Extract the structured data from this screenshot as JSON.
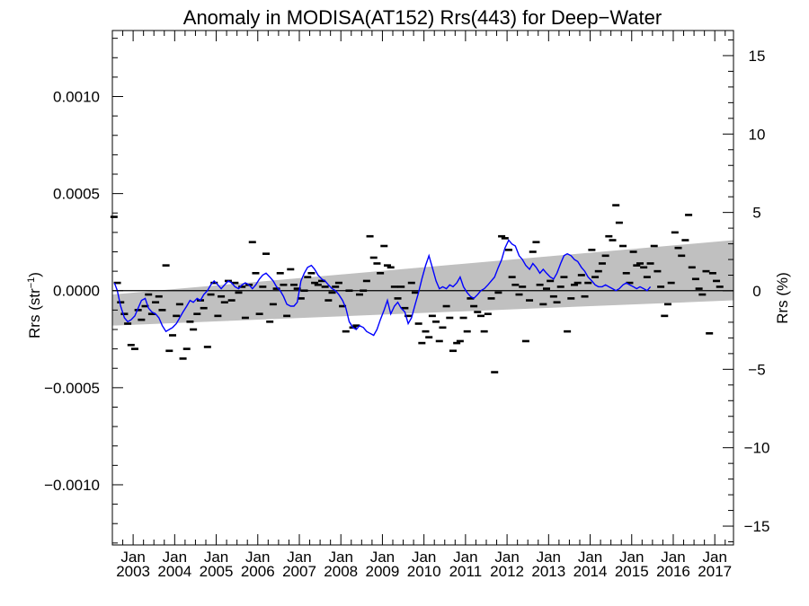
{
  "chart_data": {
    "type": "scatter",
    "title": "Anomaly in MODISA(AT152) Rrs(443) for Deep−Water",
    "ylabel": "Rrs (str",
    "ylabel_sup": "−1",
    "ylabel_close": ")",
    "y2label": "Rrs (%)",
    "xlim": [
      2002.5,
      2017.45
    ],
    "ylim": [
      -0.00131,
      0.00134
    ],
    "y2lim": [
      -16.2,
      16.6
    ],
    "grid": false,
    "yticks": [
      {
        "value": 0.001,
        "label": "0.0010"
      },
      {
        "value": 0.0005,
        "label": "0.0005"
      },
      {
        "value": 0.0,
        "label": "0.0000"
      },
      {
        "value": -0.0005,
        "label": "−0.0005"
      },
      {
        "value": -0.001,
        "label": "−0.0010"
      }
    ],
    "y2ticks": [
      {
        "value": 15,
        "label": "15"
      },
      {
        "value": 10,
        "label": "10"
      },
      {
        "value": 5,
        "label": "5"
      },
      {
        "value": 0,
        "label": "0"
      },
      {
        "value": -5,
        "label": "−5"
      },
      {
        "value": -10,
        "label": "−10"
      },
      {
        "value": -15,
        "label": "−15"
      }
    ],
    "xticks": [
      {
        "value": 2003.0,
        "month": "Jan",
        "year": "2003"
      },
      {
        "value": 2004.0,
        "month": "Jan",
        "year": "2004"
      },
      {
        "value": 2005.0,
        "month": "Jan",
        "year": "2005"
      },
      {
        "value": 2006.0,
        "month": "Jan",
        "year": "2006"
      },
      {
        "value": 2007.0,
        "month": "Jan",
        "year": "2007"
      },
      {
        "value": 2008.0,
        "month": "Jan",
        "year": "2008"
      },
      {
        "value": 2009.0,
        "month": "Jan",
        "year": "2009"
      },
      {
        "value": 2010.0,
        "month": "Jan",
        "year": "2010"
      },
      {
        "value": 2011.0,
        "month": "Jan",
        "year": "2011"
      },
      {
        "value": 2012.0,
        "month": "Jan",
        "year": "2012"
      },
      {
        "value": 2013.0,
        "month": "Jan",
        "year": "2013"
      },
      {
        "value": 2014.0,
        "month": "Jan",
        "year": "2014"
      },
      {
        "value": 2015.0,
        "month": "Jan",
        "year": "2015"
      },
      {
        "value": 2016.0,
        "month": "Jan",
        "year": "2016"
      },
      {
        "value": 2017.0,
        "month": "Jan",
        "year": "2017"
      }
    ],
    "confidence_band": {
      "x": [
        2002.5,
        2017.45
      ],
      "upper": [
        -2e-05,
        0.00026
      ],
      "lower": [
        -0.00018,
        -5e-05
      ],
      "color": "#c0c0c0"
    },
    "zero_line": 0.0,
    "colors": {
      "points": "#000000",
      "smooth": "#0000ff",
      "band": "#c0c0c0",
      "zero": "#000000"
    },
    "points": [
      [
        2002.54,
        0.00038
      ],
      [
        2002.62,
        4e-05
      ],
      [
        2002.7,
        -6e-05
      ],
      [
        2002.79,
        -0.00012
      ],
      [
        2002.87,
        -0.00017
      ],
      [
        2002.95,
        -0.00028
      ],
      [
        2003.04,
        -0.0003
      ],
      [
        2003.12,
        -0.0001
      ],
      [
        2003.2,
        -0.00015
      ],
      [
        2003.29,
        -8e-05
      ],
      [
        2003.37,
        -2e-05
      ],
      [
        2003.45,
        -0.00012
      ],
      [
        2003.54,
        -6e-05
      ],
      [
        2003.62,
        -3e-05
      ],
      [
        2003.7,
        -0.0001
      ],
      [
        2003.79,
        0.00013
      ],
      [
        2003.87,
        -0.00031
      ],
      [
        2003.95,
        -0.00023
      ],
      [
        2004.04,
        -0.00013
      ],
      [
        2004.12,
        -7e-05
      ],
      [
        2004.2,
        -0.00035
      ],
      [
        2004.29,
        -0.0003
      ],
      [
        2004.37,
        -0.00016
      ],
      [
        2004.45,
        -0.0002
      ],
      [
        2004.54,
        -0.00012
      ],
      [
        2004.62,
        -5e-05
      ],
      [
        2004.7,
        -9e-05
      ],
      [
        2004.79,
        -0.00029
      ],
      [
        2004.87,
        -2e-05
      ],
      [
        2004.95,
        4e-05
      ],
      [
        2005.04,
        -0.00013
      ],
      [
        2005.12,
        -3e-05
      ],
      [
        2005.2,
        -6e-05
      ],
      [
        2005.29,
        5e-05
      ],
      [
        2005.37,
        -5e-05
      ],
      [
        2005.45,
        4e-05
      ],
      [
        2005.54,
        -1e-05
      ],
      [
        2005.62,
        2e-05
      ],
      [
        2005.7,
        -0.00014
      ],
      [
        2005.79,
        3e-05
      ],
      [
        2005.87,
        0.00025
      ],
      [
        2005.95,
        9e-05
      ],
      [
        2006.04,
        -0.00012
      ],
      [
        2006.12,
        2e-05
      ],
      [
        2006.2,
        0.00019
      ],
      [
        2006.29,
        -0.00016
      ],
      [
        2006.37,
        -7e-05
      ],
      [
        2006.45,
        1e-05
      ],
      [
        2006.54,
        9e-05
      ],
      [
        2006.62,
        3e-05
      ],
      [
        2006.7,
        -0.00013
      ],
      [
        2006.79,
        0.00011
      ],
      [
        2006.87,
        3e-05
      ],
      [
        2006.95,
        1e-05
      ],
      [
        2007.04,
        -4e-05
      ],
      [
        2007.12,
        0.0
      ],
      [
        2007.2,
        7e-05
      ],
      [
        2007.29,
        9e-05
      ],
      [
        2007.37,
        4e-05
      ],
      [
        2007.45,
        3e-05
      ],
      [
        2007.54,
        5e-05
      ],
      [
        2007.62,
        2e-05
      ],
      [
        2007.7,
        -5e-05
      ],
      [
        2007.79,
        -1e-05
      ],
      [
        2007.87,
        2e-05
      ],
      [
        2007.95,
        4e-05
      ],
      [
        2008.04,
        -8e-05
      ],
      [
        2008.12,
        -0.00021
      ],
      [
        2008.2,
        -0.0
      ],
      [
        2008.29,
        -0.00019
      ],
      [
        2008.37,
        -0.00018
      ],
      [
        2008.45,
        -2e-05
      ],
      [
        2008.54,
        0.0
      ],
      [
        2008.62,
        5e-05
      ],
      [
        2008.7,
        0.00028
      ],
      [
        2008.79,
        0.00017
      ],
      [
        2008.87,
        0.00014
      ],
      [
        2008.95,
        9e-05
      ],
      [
        2009.04,
        0.00023
      ],
      [
        2009.12,
        0.00013
      ],
      [
        2009.2,
        0.00012
      ],
      [
        2009.29,
        2e-05
      ],
      [
        2009.37,
        -4e-05
      ],
      [
        2009.45,
        2e-05
      ],
      [
        2009.54,
        -9e-05
      ],
      [
        2009.62,
        -0.00013
      ],
      [
        2009.7,
        4e-05
      ],
      [
        2009.79,
        -1e-05
      ],
      [
        2009.87,
        -0.00017
      ],
      [
        2009.95,
        -0.00027
      ],
      [
        2010.04,
        -0.00021
      ],
      [
        2010.12,
        -0.00024
      ],
      [
        2010.2,
        -0.00013
      ],
      [
        2010.29,
        -0.00016
      ],
      [
        2010.37,
        -0.00026
      ],
      [
        2010.45,
        -0.00019
      ],
      [
        2010.54,
        -8e-05
      ],
      [
        2010.62,
        -0.00014
      ],
      [
        2010.7,
        -0.00031
      ],
      [
        2010.79,
        -0.00027
      ],
      [
        2010.87,
        -0.00026
      ],
      [
        2010.95,
        -0.00014
      ],
      [
        2011.04,
        -0.00021
      ],
      [
        2011.12,
        -4e-05
      ],
      [
        2011.2,
        -8e-05
      ],
      [
        2011.29,
        -0.00011
      ],
      [
        2011.37,
        -0.00013
      ],
      [
        2011.45,
        -0.00021
      ],
      [
        2011.54,
        -0.00012
      ],
      [
        2011.62,
        -4e-05
      ],
      [
        2011.7,
        -0.00042
      ],
      [
        2011.79,
        -1e-05
      ],
      [
        2011.87,
        0.00028
      ],
      [
        2011.95,
        0.00027
      ],
      [
        2012.04,
        0.00021
      ],
      [
        2012.12,
        7e-05
      ],
      [
        2012.2,
        3e-05
      ],
      [
        2012.29,
        -2e-05
      ],
      [
        2012.37,
        2e-05
      ],
      [
        2012.45,
        -0.00026
      ],
      [
        2012.54,
        -5e-05
      ],
      [
        2012.62,
        0.0002
      ],
      [
        2012.7,
        0.00025
      ],
      [
        2012.79,
        3e-05
      ],
      [
        2012.87,
        -7e-05
      ],
      [
        2012.95,
        1e-05
      ],
      [
        2013.04,
        5e-05
      ],
      [
        2013.12,
        -3e-05
      ],
      [
        2013.2,
        -6e-05
      ],
      [
        2013.29,
        2e-05
      ],
      [
        2013.37,
        7e-05
      ],
      [
        2013.45,
        -0.00021
      ],
      [
        2013.54,
        -4e-05
      ],
      [
        2013.62,
        3e-05
      ],
      [
        2013.7,
        4e-05
      ],
      [
        2013.79,
        8e-05
      ],
      [
        2013.87,
        -3e-05
      ],
      [
        2013.95,
        4e-05
      ],
      [
        2014.04,
        0.00021
      ],
      [
        2014.12,
        7e-05
      ],
      [
        2014.2,
        0.0001
      ],
      [
        2014.29,
        0.00014
      ],
      [
        2014.37,
        0.00018
      ],
      [
        2014.45,
        0.00028
      ],
      [
        2014.54,
        0.00026
      ],
      [
        2014.62,
        0.00044
      ],
      [
        2014.7,
        0.00035
      ],
      [
        2014.79,
        0.00023
      ],
      [
        2014.87,
        9e-05
      ],
      [
        2014.95,
        4e-05
      ],
      [
        2015.04,
        0.0002
      ],
      [
        2015.12,
        0.00013
      ],
      [
        2015.2,
        0.00014
      ],
      [
        2015.29,
        0.00012
      ],
      [
        2015.37,
        7e-05
      ],
      [
        2015.45,
        0.00014
      ],
      [
        2015.54,
        0.00023
      ],
      [
        2015.62,
        0.0001
      ],
      [
        2015.7,
        2e-05
      ],
      [
        2015.79,
        -0.00013
      ],
      [
        2015.87,
        -7e-05
      ],
      [
        2015.95,
        4e-05
      ],
      [
        2016.04,
        0.0003
      ],
      [
        2016.12,
        0.00022
      ],
      [
        2016.2,
        0.00018
      ],
      [
        2016.29,
        0.00026
      ],
      [
        2016.37,
        0.00039
      ],
      [
        2016.45,
        0.00012
      ],
      [
        2016.54,
        6e-05
      ],
      [
        2016.62,
        1e-05
      ],
      [
        2016.7,
        -2e-05
      ],
      [
        2016.79,
        0.0001
      ],
      [
        2016.87,
        -0.00022
      ],
      [
        2016.95,
        9e-05
      ],
      [
        2017.04,
        5e-05
      ],
      [
        2017.12,
        2e-05
      ]
    ],
    "smooth": [
      [
        2002.55,
        4e-05
      ],
      [
        2002.62,
        0.0
      ],
      [
        2002.7,
        -8e-05
      ],
      [
        2002.79,
        -0.00014
      ],
      [
        2002.87,
        -0.00016
      ],
      [
        2002.95,
        -0.00015
      ],
      [
        2003.04,
        -0.00013
      ],
      [
        2003.12,
        -9e-05
      ],
      [
        2003.2,
        -5e-05
      ],
      [
        2003.29,
        -4e-05
      ],
      [
        2003.37,
        -9e-05
      ],
      [
        2003.45,
        -0.00011
      ],
      [
        2003.54,
        -0.00012
      ],
      [
        2003.62,
        -0.00014
      ],
      [
        2003.7,
        -0.00018
      ],
      [
        2003.79,
        -0.00021
      ],
      [
        2003.87,
        -0.0002
      ],
      [
        2003.95,
        -0.00019
      ],
      [
        2004.04,
        -0.00017
      ],
      [
        2004.12,
        -0.00014
      ],
      [
        2004.2,
        -0.00011
      ],
      [
        2004.29,
        -8e-05
      ],
      [
        2004.37,
        -5e-05
      ],
      [
        2004.45,
        -6e-05
      ],
      [
        2004.54,
        -4e-05
      ],
      [
        2004.62,
        -5e-05
      ],
      [
        2004.7,
        -2e-05
      ],
      [
        2004.79,
        0.0
      ],
      [
        2004.87,
        3e-05
      ],
      [
        2004.95,
        5e-05
      ],
      [
        2005.04,
        3e-05
      ],
      [
        2005.12,
        1e-05
      ],
      [
        2005.2,
        3e-05
      ],
      [
        2005.29,
        5e-05
      ],
      [
        2005.37,
        4e-05
      ],
      [
        2005.45,
        2e-05
      ],
      [
        2005.54,
        1e-05
      ],
      [
        2005.62,
        3e-05
      ],
      [
        2005.7,
        4e-05
      ],
      [
        2005.79,
        3e-05
      ],
      [
        2005.87,
        1e-05
      ],
      [
        2005.95,
        3e-05
      ],
      [
        2006.04,
        6e-05
      ],
      [
        2006.12,
        8e-05
      ],
      [
        2006.2,
        9e-05
      ],
      [
        2006.29,
        7e-05
      ],
      [
        2006.37,
        5e-05
      ],
      [
        2006.45,
        2e-05
      ],
      [
        2006.54,
        0.0
      ],
      [
        2006.62,
        -3e-05
      ],
      [
        2006.7,
        -7e-05
      ],
      [
        2006.79,
        -8e-05
      ],
      [
        2006.87,
        -8e-05
      ],
      [
        2006.95,
        -6e-05
      ],
      [
        2007.04,
        5e-05
      ],
      [
        2007.12,
        9e-05
      ],
      [
        2007.2,
        0.00012
      ],
      [
        2007.29,
        0.00013
      ],
      [
        2007.37,
        0.00011
      ],
      [
        2007.45,
        8e-05
      ],
      [
        2007.54,
        6e-05
      ],
      [
        2007.62,
        5e-05
      ],
      [
        2007.7,
        3e-05
      ],
      [
        2007.79,
        1e-05
      ],
      [
        2007.87,
        0.0
      ],
      [
        2007.95,
        -2e-05
      ],
      [
        2008.04,
        -5e-05
      ],
      [
        2008.12,
        -9e-05
      ],
      [
        2008.2,
        -0.00016
      ],
      [
        2008.29,
        -0.00019
      ],
      [
        2008.37,
        -0.0002
      ],
      [
        2008.45,
        -0.00018
      ],
      [
        2008.54,
        -0.00019
      ],
      [
        2008.62,
        -0.00021
      ],
      [
        2008.7,
        -0.00022
      ],
      [
        2008.79,
        -0.00023
      ],
      [
        2008.87,
        -0.0002
      ],
      [
        2008.95,
        -0.00015
      ],
      [
        2009.04,
        -0.0001
      ],
      [
        2009.12,
        -5e-05
      ],
      [
        2009.2,
        -0.00012
      ],
      [
        2009.29,
        -8e-05
      ],
      [
        2009.37,
        -6e-05
      ],
      [
        2009.45,
        -9e-05
      ],
      [
        2009.54,
        -0.00011
      ],
      [
        2009.62,
        -0.00017
      ],
      [
        2009.7,
        -0.00014
      ],
      [
        2009.79,
        -7e-05
      ],
      [
        2009.87,
        -1e-05
      ],
      [
        2009.95,
        6e-05
      ],
      [
        2010.04,
        0.00013
      ],
      [
        2010.12,
        0.00018
      ],
      [
        2010.2,
        0.00012
      ],
      [
        2010.29,
        5e-05
      ],
      [
        2010.37,
        1e-05
      ],
      [
        2010.45,
        2e-05
      ],
      [
        2010.54,
        1e-05
      ],
      [
        2010.62,
        3e-05
      ],
      [
        2010.7,
        2e-05
      ],
      [
        2010.79,
        4e-05
      ],
      [
        2010.87,
        7e-05
      ],
      [
        2010.95,
        2e-05
      ],
      [
        2011.04,
        -1e-05
      ],
      [
        2011.12,
        -3e-05
      ],
      [
        2011.2,
        -4e-05
      ],
      [
        2011.29,
        -2e-05
      ],
      [
        2011.37,
        -0.0
      ],
      [
        2011.45,
        1e-05
      ],
      [
        2011.54,
        3e-05
      ],
      [
        2011.62,
        5e-05
      ],
      [
        2011.7,
        7e-05
      ],
      [
        2011.79,
        0.00012
      ],
      [
        2011.87,
        0.00016
      ],
      [
        2011.95,
        0.00022
      ],
      [
        2012.04,
        0.00026
      ],
      [
        2012.12,
        0.00024
      ],
      [
        2012.2,
        0.00023
      ],
      [
        2012.29,
        0.00018
      ],
      [
        2012.37,
        0.00016
      ],
      [
        2012.45,
        0.00013
      ],
      [
        2012.54,
        0.00011
      ],
      [
        2012.62,
        0.00014
      ],
      [
        2012.7,
        0.00012
      ],
      [
        2012.79,
        9e-05
      ],
      [
        2012.87,
        0.00011
      ],
      [
        2012.95,
        9e-05
      ],
      [
        2013.04,
        7e-05
      ],
      [
        2013.12,
        6e-05
      ],
      [
        2013.2,
        9e-05
      ],
      [
        2013.29,
        0.00014
      ],
      [
        2013.37,
        0.00018
      ],
      [
        2013.45,
        0.00019
      ],
      [
        2013.54,
        0.00018
      ],
      [
        2013.62,
        0.00016
      ],
      [
        2013.7,
        0.00015
      ],
      [
        2013.79,
        0.00012
      ],
      [
        2013.87,
        0.0001
      ],
      [
        2013.95,
        7e-05
      ],
      [
        2014.04,
        5e-05
      ],
      [
        2014.12,
        3e-05
      ],
      [
        2014.2,
        2e-05
      ],
      [
        2014.29,
        2e-05
      ],
      [
        2014.37,
        3e-05
      ],
      [
        2014.45,
        2e-05
      ],
      [
        2014.54,
        1e-05
      ],
      [
        2014.62,
        0.0
      ],
      [
        2014.7,
        1e-05
      ],
      [
        2014.79,
        3e-05
      ],
      [
        2014.87,
        4e-05
      ],
      [
        2014.95,
        3e-05
      ],
      [
        2015.04,
        2e-05
      ],
      [
        2015.12,
        1e-05
      ],
      [
        2015.2,
        2e-05
      ],
      [
        2015.29,
        1e-05
      ],
      [
        2015.37,
        0.0
      ],
      [
        2015.45,
        2e-05
      ]
    ]
  }
}
